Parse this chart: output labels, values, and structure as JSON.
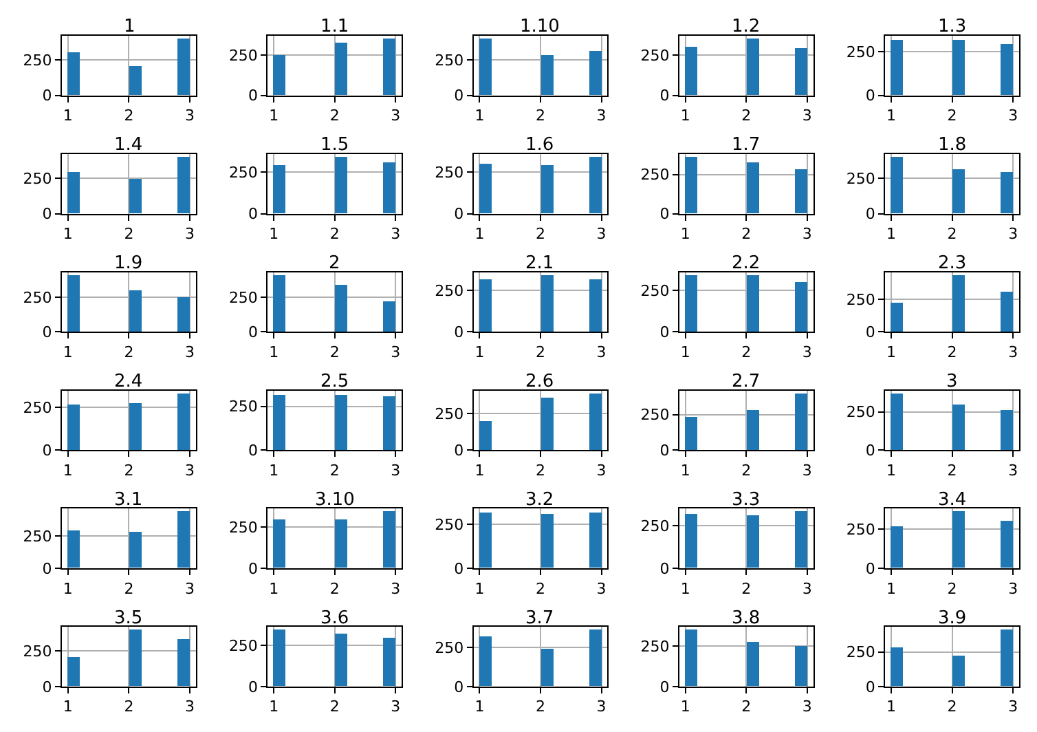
{
  "chart_data": [
    {
      "type": "histogram",
      "title": "1",
      "bins": [
        1,
        1.2,
        1.4,
        1.6,
        1.8,
        2,
        2.2,
        2.4,
        2.6,
        2.8,
        3
      ],
      "values": [
        300,
        0,
        0,
        0,
        0,
        210,
        0,
        0,
        0,
        400
      ],
      "color": "#1f77b4",
      "xlim": [
        0.9,
        3.1
      ],
      "xticks": [
        1,
        2,
        3
      ],
      "ylim": [
        0,
        420
      ],
      "yticks": [
        0,
        250
      ],
      "grid": true
    },
    {
      "type": "histogram",
      "title": "1.1",
      "bins": [
        1,
        1.2,
        1.4,
        1.6,
        1.8,
        2,
        2.2,
        2.4,
        2.6,
        2.8,
        3
      ],
      "values": [
        250,
        0,
        0,
        0,
        0,
        330,
        0,
        0,
        0,
        350
      ],
      "color": "#1f77b4",
      "xlim": [
        0.9,
        3.1
      ],
      "xticks": [
        1,
        2,
        3
      ],
      "ylim": [
        0,
        370
      ],
      "yticks": [
        0,
        250
      ],
      "grid": true
    },
    {
      "type": "histogram",
      "title": "1.10",
      "bins": [
        1,
        1.2,
        1.4,
        1.6,
        1.8,
        2,
        2.2,
        2.4,
        2.6,
        2.8,
        3
      ],
      "values": [
        400,
        0,
        0,
        0,
        0,
        280,
        0,
        0,
        0,
        310
      ],
      "color": "#1f77b4",
      "xlim": [
        0.9,
        3.1
      ],
      "xticks": [
        1,
        2,
        3
      ],
      "ylim": [
        0,
        420
      ],
      "yticks": [
        0,
        250
      ],
      "grid": true
    },
    {
      "type": "histogram",
      "title": "1.2",
      "bins": [
        1,
        1.2,
        1.4,
        1.6,
        1.8,
        2,
        2.2,
        2.4,
        2.6,
        2.8,
        3
      ],
      "values": [
        300,
        0,
        0,
        0,
        0,
        350,
        0,
        0,
        0,
        290
      ],
      "color": "#1f77b4",
      "xlim": [
        0.9,
        3.1
      ],
      "xticks": [
        1,
        2,
        3
      ],
      "ylim": [
        0,
        370
      ],
      "yticks": [
        0,
        250
      ],
      "grid": true
    },
    {
      "type": "histogram",
      "title": "1.3",
      "bins": [
        1,
        1.2,
        1.4,
        1.6,
        1.8,
        2,
        2.2,
        2.4,
        2.6,
        2.8,
        3
      ],
      "values": [
        320,
        0,
        0,
        0,
        0,
        320,
        0,
        0,
        0,
        290
      ],
      "color": "#1f77b4",
      "xlim": [
        0.9,
        3.1
      ],
      "xticks": [
        1,
        2,
        3
      ],
      "ylim": [
        0,
        340
      ],
      "yticks": [
        0,
        250
      ],
      "grid": true
    },
    {
      "type": "histogram",
      "title": "1.4",
      "bins": [
        1,
        1.2,
        1.4,
        1.6,
        1.8,
        2,
        2.2,
        2.4,
        2.6,
        2.8,
        3
      ],
      "values": [
        290,
        0,
        0,
        0,
        0,
        250,
        0,
        0,
        0,
        400
      ],
      "color": "#1f77b4",
      "xlim": [
        0.9,
        3.1
      ],
      "xticks": [
        1,
        2,
        3
      ],
      "ylim": [
        0,
        420
      ],
      "yticks": [
        0,
        250
      ],
      "grid": true
    },
    {
      "type": "histogram",
      "title": "1.5",
      "bins": [
        1,
        1.2,
        1.4,
        1.6,
        1.8,
        2,
        2.2,
        2.4,
        2.6,
        2.8,
        3
      ],
      "values": [
        290,
        0,
        0,
        0,
        0,
        340,
        0,
        0,
        0,
        310
      ],
      "color": "#1f77b4",
      "xlim": [
        0.9,
        3.1
      ],
      "xticks": [
        1,
        2,
        3
      ],
      "ylim": [
        0,
        360
      ],
      "yticks": [
        0,
        250
      ],
      "grid": true
    },
    {
      "type": "histogram",
      "title": "1.6",
      "bins": [
        1,
        1.2,
        1.4,
        1.6,
        1.8,
        2,
        2.2,
        2.4,
        2.6,
        2.8,
        3
      ],
      "values": [
        300,
        0,
        0,
        0,
        0,
        290,
        0,
        0,
        0,
        340
      ],
      "color": "#1f77b4",
      "xlim": [
        0.9,
        3.1
      ],
      "xticks": [
        1,
        2,
        3
      ],
      "ylim": [
        0,
        360
      ],
      "yticks": [
        0,
        250
      ],
      "grid": true
    },
    {
      "type": "histogram",
      "title": "1.7",
      "bins": [
        1,
        1.2,
        1.4,
        1.6,
        1.8,
        2,
        2.2,
        2.4,
        2.6,
        2.8,
        3
      ],
      "values": [
        360,
        0,
        0,
        0,
        0,
        330,
        0,
        0,
        0,
        280
      ],
      "color": "#1f77b4",
      "xlim": [
        0.9,
        3.1
      ],
      "xticks": [
        1,
        2,
        3
      ],
      "ylim": [
        0,
        380
      ],
      "yticks": [
        0,
        250
      ],
      "grid": true
    },
    {
      "type": "histogram",
      "title": "1.8",
      "bins": [
        1,
        1.2,
        1.4,
        1.6,
        1.8,
        2,
        2.2,
        2.4,
        2.6,
        2.8,
        3
      ],
      "values": [
        400,
        0,
        0,
        0,
        0,
        310,
        0,
        0,
        0,
        290
      ],
      "color": "#1f77b4",
      "xlim": [
        0.9,
        3.1
      ],
      "xticks": [
        1,
        2,
        3
      ],
      "ylim": [
        0,
        420
      ],
      "yticks": [
        0,
        250
      ],
      "grid": true
    },
    {
      "type": "histogram",
      "title": "1.9",
      "bins": [
        1,
        1.2,
        1.4,
        1.6,
        1.8,
        2,
        2.2,
        2.4,
        2.6,
        2.8,
        3
      ],
      "values": [
        410,
        0,
        0,
        0,
        0,
        300,
        0,
        0,
        0,
        250
      ],
      "color": "#1f77b4",
      "xlim": [
        0.9,
        3.1
      ],
      "xticks": [
        1,
        2,
        3
      ],
      "ylim": [
        0,
        430
      ],
      "yticks": [
        0,
        250
      ],
      "grid": true
    },
    {
      "type": "histogram",
      "title": "2",
      "bins": [
        1,
        1.2,
        1.4,
        1.6,
        1.8,
        2,
        2.2,
        2.4,
        2.6,
        2.8,
        3
      ],
      "values": [
        410,
        0,
        0,
        0,
        0,
        340,
        0,
        0,
        0,
        220
      ],
      "color": "#1f77b4",
      "xlim": [
        0.9,
        3.1
      ],
      "xticks": [
        1,
        2,
        3
      ],
      "ylim": [
        0,
        430
      ],
      "yticks": [
        0,
        250
      ],
      "grid": true
    },
    {
      "type": "histogram",
      "title": "2.1",
      "bins": [
        1,
        1.2,
        1.4,
        1.6,
        1.8,
        2,
        2.2,
        2.4,
        2.6,
        2.8,
        3
      ],
      "values": [
        320,
        0,
        0,
        0,
        0,
        340,
        0,
        0,
        0,
        320
      ],
      "color": "#1f77b4",
      "xlim": [
        0.9,
        3.1
      ],
      "xticks": [
        1,
        2,
        3
      ],
      "ylim": [
        0,
        360
      ],
      "yticks": [
        0,
        250
      ],
      "grid": true
    },
    {
      "type": "histogram",
      "title": "2.2",
      "bins": [
        1,
        1.2,
        1.4,
        1.6,
        1.8,
        2,
        2.2,
        2.4,
        2.6,
        2.8,
        3
      ],
      "values": [
        340,
        0,
        0,
        0,
        0,
        340,
        0,
        0,
        0,
        300
      ],
      "color": "#1f77b4",
      "xlim": [
        0.9,
        3.1
      ],
      "xticks": [
        1,
        2,
        3
      ],
      "ylim": [
        0,
        360
      ],
      "yticks": [
        0,
        250
      ],
      "grid": true
    },
    {
      "type": "histogram",
      "title": "2.3",
      "bins": [
        1,
        1.2,
        1.4,
        1.6,
        1.8,
        2,
        2.2,
        2.4,
        2.6,
        2.8,
        3
      ],
      "values": [
        230,
        0,
        0,
        0,
        0,
        440,
        0,
        0,
        0,
        310
      ],
      "color": "#1f77b4",
      "xlim": [
        0.9,
        3.1
      ],
      "xticks": [
        1,
        2,
        3
      ],
      "ylim": [
        0,
        460
      ],
      "yticks": [
        0,
        250
      ],
      "grid": true
    },
    {
      "type": "histogram",
      "title": "2.4",
      "bins": [
        1,
        1.2,
        1.4,
        1.6,
        1.8,
        2,
        2.2,
        2.4,
        2.6,
        2.8,
        3
      ],
      "values": [
        270,
        0,
        0,
        0,
        0,
        280,
        0,
        0,
        0,
        330
      ],
      "color": "#1f77b4",
      "xlim": [
        0.9,
        3.1
      ],
      "xticks": [
        1,
        2,
        3
      ],
      "ylim": [
        0,
        350
      ],
      "yticks": [
        0,
        250
      ],
      "grid": true
    },
    {
      "type": "histogram",
      "title": "2.5",
      "bins": [
        1,
        1.2,
        1.4,
        1.6,
        1.8,
        2,
        2.2,
        2.4,
        2.6,
        2.8,
        3
      ],
      "values": [
        320,
        0,
        0,
        0,
        0,
        320,
        0,
        0,
        0,
        310
      ],
      "color": "#1f77b4",
      "xlim": [
        0.9,
        3.1
      ],
      "xticks": [
        1,
        2,
        3
      ],
      "ylim": [
        0,
        340
      ],
      "yticks": [
        0,
        250
      ],
      "grid": true
    },
    {
      "type": "histogram",
      "title": "2.6",
      "bins": [
        1,
        1.2,
        1.4,
        1.6,
        1.8,
        2,
        2.2,
        2.4,
        2.6,
        2.8,
        3
      ],
      "values": [
        200,
        0,
        0,
        0,
        0,
        360,
        0,
        0,
        0,
        390
      ],
      "color": "#1f77b4",
      "xlim": [
        0.9,
        3.1
      ],
      "xticks": [
        1,
        2,
        3
      ],
      "ylim": [
        0,
        410
      ],
      "yticks": [
        0,
        250
      ],
      "grid": true
    },
    {
      "type": "histogram",
      "title": "2.7",
      "bins": [
        1,
        1.2,
        1.4,
        1.6,
        1.8,
        2,
        2.2,
        2.4,
        2.6,
        2.8,
        3
      ],
      "values": [
        240,
        0,
        0,
        0,
        0,
        280,
        0,
        0,
        0,
        400
      ],
      "color": "#1f77b4",
      "xlim": [
        0.9,
        3.1
      ],
      "xticks": [
        1,
        2,
        3
      ],
      "ylim": [
        0,
        420
      ],
      "yticks": [
        0,
        250
      ],
      "grid": true
    },
    {
      "type": "histogram",
      "title": "3",
      "bins": [
        1,
        1.2,
        1.4,
        1.6,
        1.8,
        2,
        2.2,
        2.4,
        2.6,
        2.8,
        3
      ],
      "values": [
        370,
        0,
        0,
        0,
        0,
        300,
        0,
        0,
        0,
        260
      ],
      "color": "#1f77b4",
      "xlim": [
        0.9,
        3.1
      ],
      "xticks": [
        1,
        2,
        3
      ],
      "ylim": [
        0,
        390
      ],
      "yticks": [
        0,
        250
      ],
      "grid": true
    },
    {
      "type": "histogram",
      "title": "3.1",
      "bins": [
        1,
        1.2,
        1.4,
        1.6,
        1.8,
        2,
        2.2,
        2.4,
        2.6,
        2.8,
        3
      ],
      "values": [
        290,
        0,
        0,
        0,
        0,
        280,
        0,
        0,
        0,
        440
      ],
      "color": "#1f77b4",
      "xlim": [
        0.9,
        3.1
      ],
      "xticks": [
        1,
        2,
        3
      ],
      "ylim": [
        0,
        460
      ],
      "yticks": [
        0,
        250
      ],
      "grid": true
    },
    {
      "type": "histogram",
      "title": "3.10",
      "bins": [
        1,
        1.2,
        1.4,
        1.6,
        1.8,
        2,
        2.2,
        2.4,
        2.6,
        2.8,
        3
      ],
      "values": [
        290,
        0,
        0,
        0,
        0,
        290,
        0,
        0,
        0,
        340
      ],
      "color": "#1f77b4",
      "xlim": [
        0.9,
        3.1
      ],
      "xticks": [
        1,
        2,
        3
      ],
      "ylim": [
        0,
        360
      ],
      "yticks": [
        0,
        250
      ],
      "grid": true
    },
    {
      "type": "histogram",
      "title": "3.2",
      "bins": [
        1,
        1.2,
        1.4,
        1.6,
        1.8,
        2,
        2.2,
        2.4,
        2.6,
        2.8,
        3
      ],
      "values": [
        320,
        0,
        0,
        0,
        0,
        310,
        0,
        0,
        0,
        320
      ],
      "color": "#1f77b4",
      "xlim": [
        0.9,
        3.1
      ],
      "xticks": [
        1,
        2,
        3
      ],
      "ylim": [
        0,
        340
      ],
      "yticks": [
        0,
        250
      ],
      "grid": true
    },
    {
      "type": "histogram",
      "title": "3.3",
      "bins": [
        1,
        1.2,
        1.4,
        1.6,
        1.8,
        2,
        2.2,
        2.4,
        2.6,
        2.8,
        3
      ],
      "values": [
        320,
        0,
        0,
        0,
        0,
        310,
        0,
        0,
        0,
        330
      ],
      "color": "#1f77b4",
      "xlim": [
        0.9,
        3.1
      ],
      "xticks": [
        1,
        2,
        3
      ],
      "ylim": [
        0,
        350
      ],
      "yticks": [
        0,
        250
      ],
      "grid": true
    },
    {
      "type": "histogram",
      "title": "3.4",
      "bins": [
        1,
        1.2,
        1.4,
        1.6,
        1.8,
        2,
        2.2,
        2.4,
        2.6,
        2.8,
        3
      ],
      "values": [
        270,
        0,
        0,
        0,
        0,
        360,
        0,
        0,
        0,
        300
      ],
      "color": "#1f77b4",
      "xlim": [
        0.9,
        3.1
      ],
      "xticks": [
        1,
        2,
        3
      ],
      "ylim": [
        0,
        380
      ],
      "yticks": [
        0,
        250
      ],
      "grid": true
    },
    {
      "type": "histogram",
      "title": "3.5",
      "bins": [
        1,
        1.2,
        1.4,
        1.6,
        1.8,
        2,
        2.2,
        2.4,
        2.6,
        2.8,
        3
      ],
      "values": [
        210,
        0,
        0,
        0,
        0,
        400,
        0,
        0,
        0,
        330
      ],
      "color": "#1f77b4",
      "xlim": [
        0.9,
        3.1
      ],
      "xticks": [
        1,
        2,
        3
      ],
      "ylim": [
        0,
        420
      ],
      "yticks": [
        0,
        250
      ],
      "grid": true
    },
    {
      "type": "histogram",
      "title": "3.6",
      "bins": [
        1,
        1.2,
        1.4,
        1.6,
        1.8,
        2,
        2.2,
        2.4,
        2.6,
        2.8,
        3
      ],
      "values": [
        340,
        0,
        0,
        0,
        0,
        320,
        0,
        0,
        0,
        290
      ],
      "color": "#1f77b4",
      "xlim": [
        0.9,
        3.1
      ],
      "xticks": [
        1,
        2,
        3
      ],
      "ylim": [
        0,
        360
      ],
      "yticks": [
        0,
        250
      ],
      "grid": true
    },
    {
      "type": "histogram",
      "title": "3.7",
      "bins": [
        1,
        1.2,
        1.4,
        1.6,
        1.8,
        2,
        2.2,
        2.4,
        2.6,
        2.8,
        3
      ],
      "values": [
        320,
        0,
        0,
        0,
        0,
        240,
        0,
        0,
        0,
        360
      ],
      "color": "#1f77b4",
      "xlim": [
        0.9,
        3.1
      ],
      "xticks": [
        1,
        2,
        3
      ],
      "ylim": [
        0,
        380
      ],
      "yticks": [
        0,
        250
      ],
      "grid": true
    },
    {
      "type": "histogram",
      "title": "3.8",
      "bins": [
        1,
        1.2,
        1.4,
        1.6,
        1.8,
        2,
        2.2,
        2.4,
        2.6,
        2.8,
        3
      ],
      "values": [
        350,
        0,
        0,
        0,
        0,
        280,
        0,
        0,
        0,
        250
      ],
      "color": "#1f77b4",
      "xlim": [
        0.9,
        3.1
      ],
      "xticks": [
        1,
        2,
        3
      ],
      "ylim": [
        0,
        370
      ],
      "yticks": [
        0,
        250
      ],
      "grid": true
    },
    {
      "type": "histogram",
      "title": "3.9",
      "bins": [
        1,
        1.2,
        1.4,
        1.6,
        1.8,
        2,
        2.2,
        2.4,
        2.6,
        2.8,
        3
      ],
      "values": [
        280,
        0,
        0,
        0,
        0,
        220,
        0,
        0,
        0,
        410
      ],
      "color": "#1f77b4",
      "xlim": [
        0.9,
        3.1
      ],
      "xticks": [
        1,
        2,
        3
      ],
      "ylim": [
        0,
        430
      ],
      "yticks": [
        0,
        250
      ],
      "grid": true
    }
  ]
}
